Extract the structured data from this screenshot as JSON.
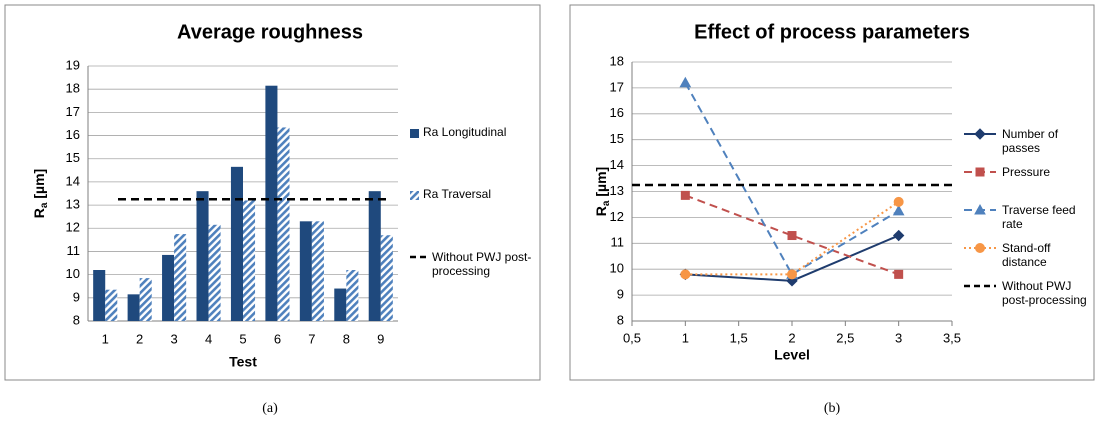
{
  "chart_data": [
    {
      "type": "bar",
      "title": "Average roughness",
      "caption": "(a)",
      "x_label": "Test",
      "y_label": {
        "symbol": "R",
        "subscript": "a",
        "unit": " [µm]"
      },
      "categories": [
        "1",
        "2",
        "3",
        "4",
        "5",
        "6",
        "7",
        "8",
        "9"
      ],
      "series": [
        {
          "name": "Ra Longitudinal",
          "color": "#1f497d",
          "fill": "solid",
          "values": [
            10.2,
            9.15,
            10.85,
            13.6,
            14.65,
            18.15,
            12.3,
            9.4,
            13.6
          ]
        },
        {
          "name": "Ra Traversal",
          "color": "#4f81bd",
          "fill": "hatch",
          "values": [
            9.35,
            9.85,
            11.75,
            12.15,
            13.2,
            16.35,
            12.3,
            10.2,
            11.7
          ]
        }
      ],
      "reference": {
        "name": "Without PWJ post-processing",
        "value": 13.25,
        "color": "#000000"
      },
      "ylim": [
        8,
        19
      ],
      "yticks": [
        8,
        9,
        10,
        11,
        12,
        13,
        14,
        15,
        16,
        17,
        18,
        19
      ],
      "grid": true
    },
    {
      "type": "line",
      "title": "Effect of process parameters",
      "caption": "(b)",
      "x_label": "Level",
      "y_label": {
        "symbol": "R",
        "subscript": "a",
        "unit": " [µm]"
      },
      "x": [
        1,
        2,
        3
      ],
      "series": [
        {
          "name": "Number of passes",
          "color": "#1f3c6e",
          "linestyle": "solid",
          "marker": "diamond",
          "values": [
            9.8,
            9.55,
            11.3
          ]
        },
        {
          "name": "Pressure",
          "color": "#c0504d",
          "linestyle": "dashed",
          "marker": "square",
          "values": [
            12.85,
            11.3,
            9.8
          ]
        },
        {
          "name": "Traverse feed rate",
          "color": "#4f81bd",
          "linestyle": "dashed",
          "marker": "triangle",
          "values": [
            17.2,
            9.8,
            12.25
          ]
        },
        {
          "name": "Stand-off distance",
          "color": "#f79646",
          "linestyle": "dotted",
          "marker": "circle",
          "values": [
            9.8,
            9.8,
            12.6
          ]
        }
      ],
      "reference": {
        "name": "Without PWJ post-processing",
        "value": 13.25,
        "color": "#000000"
      },
      "xlim": [
        0.5,
        3.5
      ],
      "xticks": [
        {
          "value": 0.5,
          "label": "0,5"
        },
        1,
        {
          "value": 1.5,
          "label": "1,5"
        },
        2,
        {
          "value": 2.5,
          "label": "2,5"
        },
        3,
        {
          "value": 3.5,
          "label": "3,5"
        }
      ],
      "ylim": [
        8,
        18
      ],
      "yticks": [
        8,
        9,
        10,
        11,
        12,
        13,
        14,
        15,
        16,
        17,
        18
      ],
      "grid": true
    }
  ]
}
